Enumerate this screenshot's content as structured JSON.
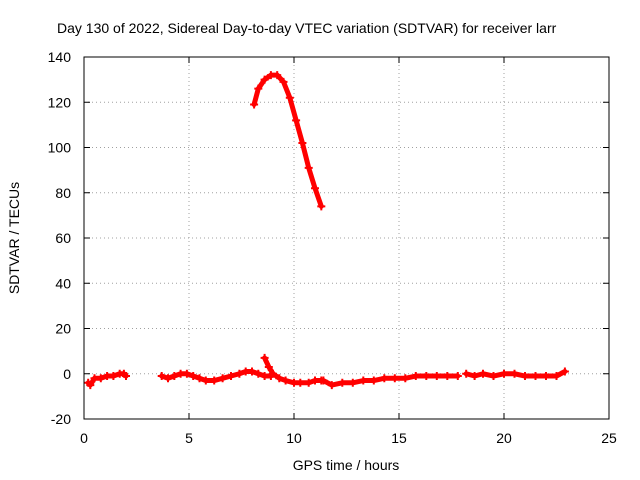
{
  "chart_data": {
    "type": "scatter",
    "title": "Day 130 of 2022, Sidereal Day-to-day VTEC variation (SDTVAR) for receiver larr",
    "xlabel": "GPS time / hours",
    "ylabel": "SDTVAR / TECUs",
    "xlim": [
      0,
      25
    ],
    "ylim": [
      -20,
      140
    ],
    "xticks": [
      0,
      5,
      10,
      15,
      20,
      25
    ],
    "yticks": [
      -20,
      0,
      20,
      40,
      60,
      80,
      100,
      120,
      140
    ],
    "grid": true,
    "series": [
      {
        "name": "SDTVAR",
        "color": "#ff0000",
        "marker": "plus",
        "segments": [
          {
            "x": [
              0.2,
              0.3,
              0.5,
              0.8,
              1.1,
              1.4,
              1.7,
              1.9,
              2.0
            ],
            "y": [
              -4,
              -5,
              -2,
              -2,
              -1,
              -1,
              0,
              0,
              -1
            ]
          },
          {
            "x": [
              3.7,
              4.0,
              4.3,
              4.6,
              4.9,
              5.2,
              5.5,
              5.8,
              6.2,
              6.6,
              7.0,
              7.4,
              7.7,
              8.0,
              8.3,
              8.6,
              8.9
            ],
            "y": [
              -1,
              -2,
              -1,
              0,
              0,
              -1,
              -2,
              -3,
              -3,
              -2,
              -1,
              0,
              1,
              1,
              0,
              -1,
              -1
            ]
          },
          {
            "x": [
              8.6,
              8.8,
              9.0,
              9.3,
              9.6,
              10.0,
              10.3,
              10.7,
              11.0,
              11.3
            ],
            "y": [
              7,
              3,
              0,
              -2,
              -3,
              -4,
              -4,
              -4,
              -3,
              -3
            ]
          },
          {
            "x": [
              11.4,
              11.8,
              12.3,
              12.8,
              13.3,
              13.8,
              14.3,
              14.8,
              15.3,
              15.8,
              16.3,
              16.8,
              17.3,
              17.8
            ],
            "y": [
              -3,
              -5,
              -4,
              -4,
              -3,
              -3,
              -2,
              -2,
              -2,
              -1,
              -1,
              -1,
              -1,
              -1
            ]
          },
          {
            "x": [
              18.2,
              18.6,
              19.0,
              19.5,
              20.0,
              20.5,
              21.0,
              21.5,
              22.0,
              22.5,
              22.9
            ],
            "y": [
              0,
              -1,
              0,
              -1,
              0,
              0,
              -1,
              -1,
              -1,
              -1,
              1
            ]
          },
          {
            "x": [
              8.1,
              8.3,
              8.6,
              8.9,
              9.2,
              9.5,
              9.8,
              10.1,
              10.4,
              10.7,
              11.0,
              11.3
            ],
            "y": [
              119,
              126,
              130,
              132,
              132,
              129,
              122,
              112,
              102,
              91,
              82,
              74
            ]
          }
        ]
      }
    ]
  }
}
